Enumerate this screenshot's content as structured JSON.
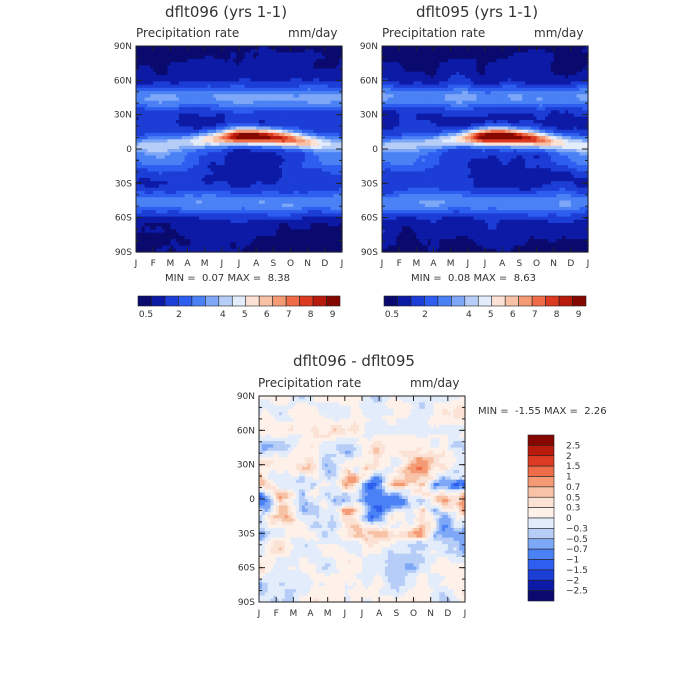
{
  "panels": [
    {
      "title": "dflt096 (yrs 1-1)",
      "variable": "Precipitation rate",
      "units": "mm/day",
      "min_label": "MIN =",
      "min_value": "0.07",
      "max_label": "MAX =",
      "max_value": "8.38"
    },
    {
      "title": "dflt095 (yrs 1-1)",
      "variable": "Precipitation rate",
      "units": "mm/day",
      "min_label": "MIN =",
      "min_value": "0.08",
      "max_label": "MAX =",
      "max_value": "8.63"
    },
    {
      "title": "dflt096 - dflt095",
      "variable": "Precipitation rate",
      "units": "mm/day",
      "min_label": "MIN =",
      "min_value": "-1.55",
      "max_label": "MAX =",
      "max_value": "2.26"
    }
  ],
  "chart_data": [
    {
      "type": "heatmap",
      "title": "dflt096 (yrs 1-1)",
      "x_ticks": [
        "J",
        "F",
        "M",
        "A",
        "M",
        "J",
        "J",
        "A",
        "S",
        "O",
        "N",
        "D",
        "J"
      ],
      "y_ticks": [
        "90N",
        "60N",
        "30N",
        "0",
        "30S",
        "60S",
        "90S"
      ],
      "colorbar_labels": [
        "0.5",
        "2",
        "4",
        "5",
        "6",
        "7",
        "8",
        "9"
      ],
      "colorbar_colors": [
        "#0a0a6e",
        "#0c1aa6",
        "#1c3dd6",
        "#2e5ef0",
        "#4a82f5",
        "#7ea8f7",
        "#b6cdf7",
        "#e2ecfa",
        "#fbe2d4",
        "#f7c2a6",
        "#f49a74",
        "#ee6c48",
        "#dd3a22",
        "#b81a0c",
        "#850800"
      ],
      "min": 0.07,
      "max": 8.38
    },
    {
      "type": "heatmap",
      "title": "dflt095 (yrs 1-1)",
      "x_ticks": [
        "J",
        "F",
        "M",
        "A",
        "M",
        "J",
        "J",
        "A",
        "S",
        "O",
        "N",
        "D",
        "J"
      ],
      "y_ticks": [
        "90N",
        "60N",
        "30N",
        "0",
        "30S",
        "60S",
        "90S"
      ],
      "colorbar_labels": [
        "0.5",
        "2",
        "4",
        "5",
        "6",
        "7",
        "8",
        "9"
      ],
      "colorbar_colors": [
        "#0a0a6e",
        "#0c1aa6",
        "#1c3dd6",
        "#2e5ef0",
        "#4a82f5",
        "#7ea8f7",
        "#b6cdf7",
        "#e2ecfa",
        "#fbe2d4",
        "#f7c2a6",
        "#f49a74",
        "#ee6c48",
        "#dd3a22",
        "#b81a0c",
        "#850800"
      ],
      "min": 0.08,
      "max": 8.63
    },
    {
      "type": "heatmap",
      "title": "dflt096 - dflt095",
      "x_ticks": [
        "J",
        "F",
        "M",
        "A",
        "M",
        "J",
        "J",
        "A",
        "S",
        "O",
        "N",
        "D",
        "J"
      ],
      "y_ticks": [
        "90N",
        "60N",
        "30N",
        "0",
        "30S",
        "60S",
        "90S"
      ],
      "colorbar_labels": [
        "2.5",
        "2",
        "1.5",
        "1",
        "0.7",
        "0.5",
        "0.3",
        "0",
        "-0.3",
        "-0.5",
        "-0.7",
        "-1",
        "-1.5",
        "-2",
        "-2.5"
      ],
      "colorbar_colors": [
        "#850800",
        "#b81a0c",
        "#dd3a22",
        "#ee6c48",
        "#f49a74",
        "#f7c2a6",
        "#fbe2d4",
        "#fdf1ea",
        "#e2ecfa",
        "#b6cdf7",
        "#7ea8f7",
        "#4a82f5",
        "#2e5ef0",
        "#1c3dd6",
        "#0c1aa6",
        "#0a0a6e"
      ],
      "min": -1.55,
      "max": 2.26
    }
  ]
}
